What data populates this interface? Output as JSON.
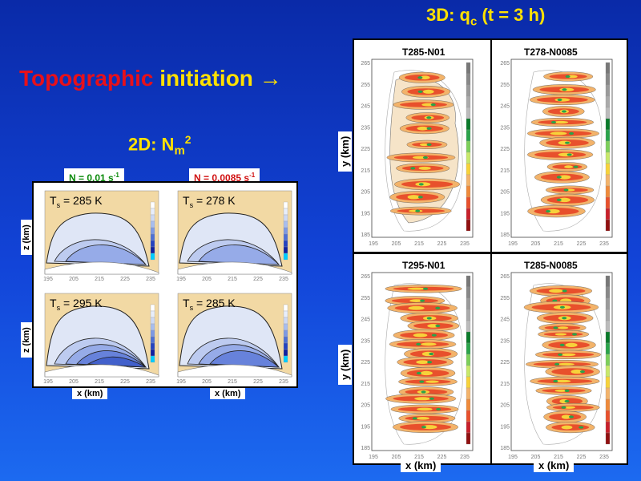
{
  "slide": {
    "title_3d_prefix": "3D: q",
    "title_3d_sub": "c",
    "title_3d_suffix": " (t = 3 h)",
    "topo_red": "Topographic",
    "topo_yellow": "initiation →",
    "title_2d_prefix": "2D: N",
    "title_2d_sub": "m",
    "title_2d_sup": "2"
  },
  "panel_2d": {
    "label_left": "N = 0.01 s",
    "label_left_sup": "-1",
    "label_left_color": "#0a8a0a",
    "label_right": "N = 0.0085 s",
    "label_right_sup": "-1",
    "label_right_color": "#d01010",
    "z_label": "z (km)",
    "x_label": "x (km)",
    "x_ticks": [
      "195",
      "205",
      "215",
      "225",
      "235"
    ],
    "subplots": [
      {
        "ts": "285 K"
      },
      {
        "ts": "278 K"
      },
      {
        "ts": "295 K"
      },
      {
        "ts": "285 K"
      }
    ]
  },
  "panel_3d": {
    "y_label": "y (km)",
    "x_label": "x (km)",
    "y_ticks": [
      "265",
      "255",
      "245",
      "235",
      "225",
      "215",
      "205",
      "195",
      "185"
    ],
    "x_ticks": [
      "195",
      "205",
      "215",
      "225",
      "235"
    ],
    "subplots": [
      {
        "title": "T285-N01"
      },
      {
        "title": "T278-N0085"
      },
      {
        "title": "T295-N01"
      },
      {
        "title": "T285-N0085"
      }
    ]
  }
}
